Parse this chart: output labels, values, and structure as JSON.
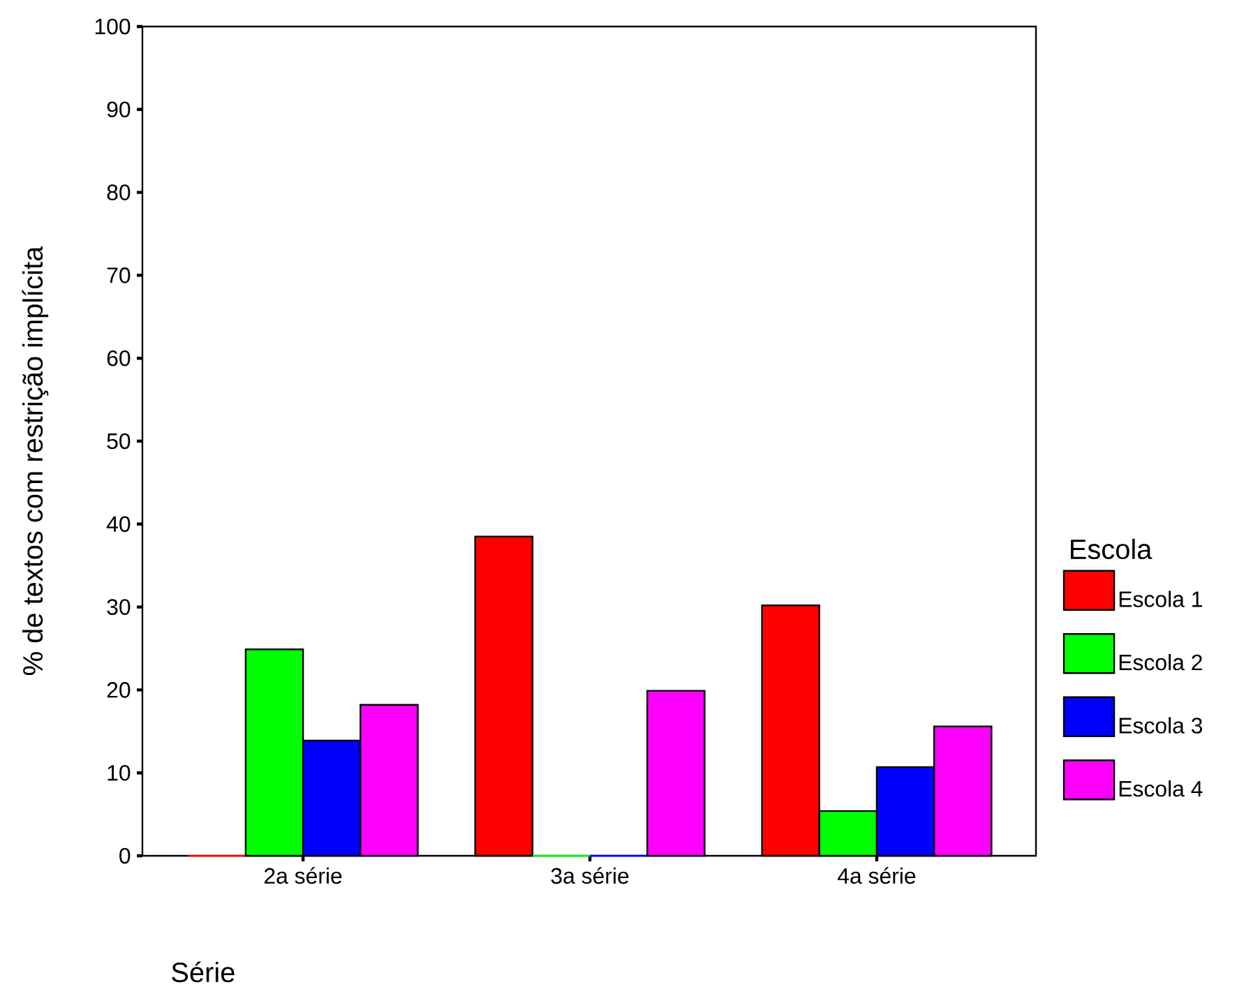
{
  "chart_data": {
    "type": "bar",
    "xlabel": "Série",
    "ylabel": "% de textos com restrição implícita",
    "legend_title": "Escola",
    "categories": [
      "2a série",
      "3a série",
      "4a série"
    ],
    "series": [
      {
        "name": "Escola 1",
        "color": "#ff0000",
        "values": [
          0,
          38.5,
          30.2
        ]
      },
      {
        "name": "Escola 2",
        "color": "#00ff00",
        "values": [
          24.9,
          0,
          5.4
        ]
      },
      {
        "name": "Escola 3",
        "color": "#0000ff",
        "values": [
          13.9,
          0,
          10.7
        ]
      },
      {
        "name": "Escola 4",
        "color": "#ff00ff",
        "values": [
          18.2,
          19.9,
          15.6
        ]
      }
    ],
    "ylim": [
      0,
      100
    ],
    "yticks": [
      0,
      10,
      20,
      30,
      40,
      50,
      60,
      70,
      80,
      90,
      100
    ],
    "grid": false,
    "legend": "right"
  }
}
